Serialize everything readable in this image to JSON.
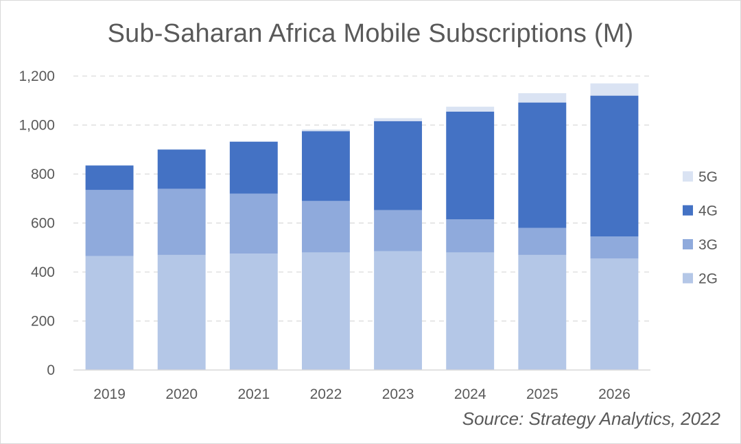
{
  "chart_data": {
    "type": "bar",
    "stacked": true,
    "title": "Sub-Saharan Africa Mobile Subscriptions (M)",
    "categories": [
      "2019",
      "2020",
      "2021",
      "2022",
      "2023",
      "2024",
      "2025",
      "2026"
    ],
    "series": [
      {
        "name": "2G",
        "color": "#b4c7e7",
        "values": [
          465,
          470,
          475,
          480,
          485,
          480,
          470,
          455
        ]
      },
      {
        "name": "3G",
        "color": "#8faadc",
        "values": [
          270,
          270,
          245,
          210,
          168,
          135,
          110,
          90
        ]
      },
      {
        "name": "4G",
        "color": "#4472c4",
        "values": [
          100,
          160,
          212,
          285,
          363,
          440,
          512,
          575
        ]
      },
      {
        "name": "5G",
        "color": "#dae3f3",
        "values": [
          0,
          0,
          3,
          7,
          12,
          20,
          38,
          50
        ]
      }
    ],
    "legend_order": [
      "5G",
      "4G",
      "3G",
      "2G"
    ],
    "legend_position": "right",
    "ylim": [
      0,
      1200
    ],
    "yticks": [
      0,
      200,
      400,
      600,
      800,
      1000,
      1200
    ],
    "ytick_labels": [
      "0",
      "200",
      "400",
      "600",
      "800",
      "1,000",
      "1,200"
    ],
    "grid": true,
    "xlabel": "",
    "ylabel": ""
  },
  "source_note": "Source: Strategy Analytics, 2022"
}
